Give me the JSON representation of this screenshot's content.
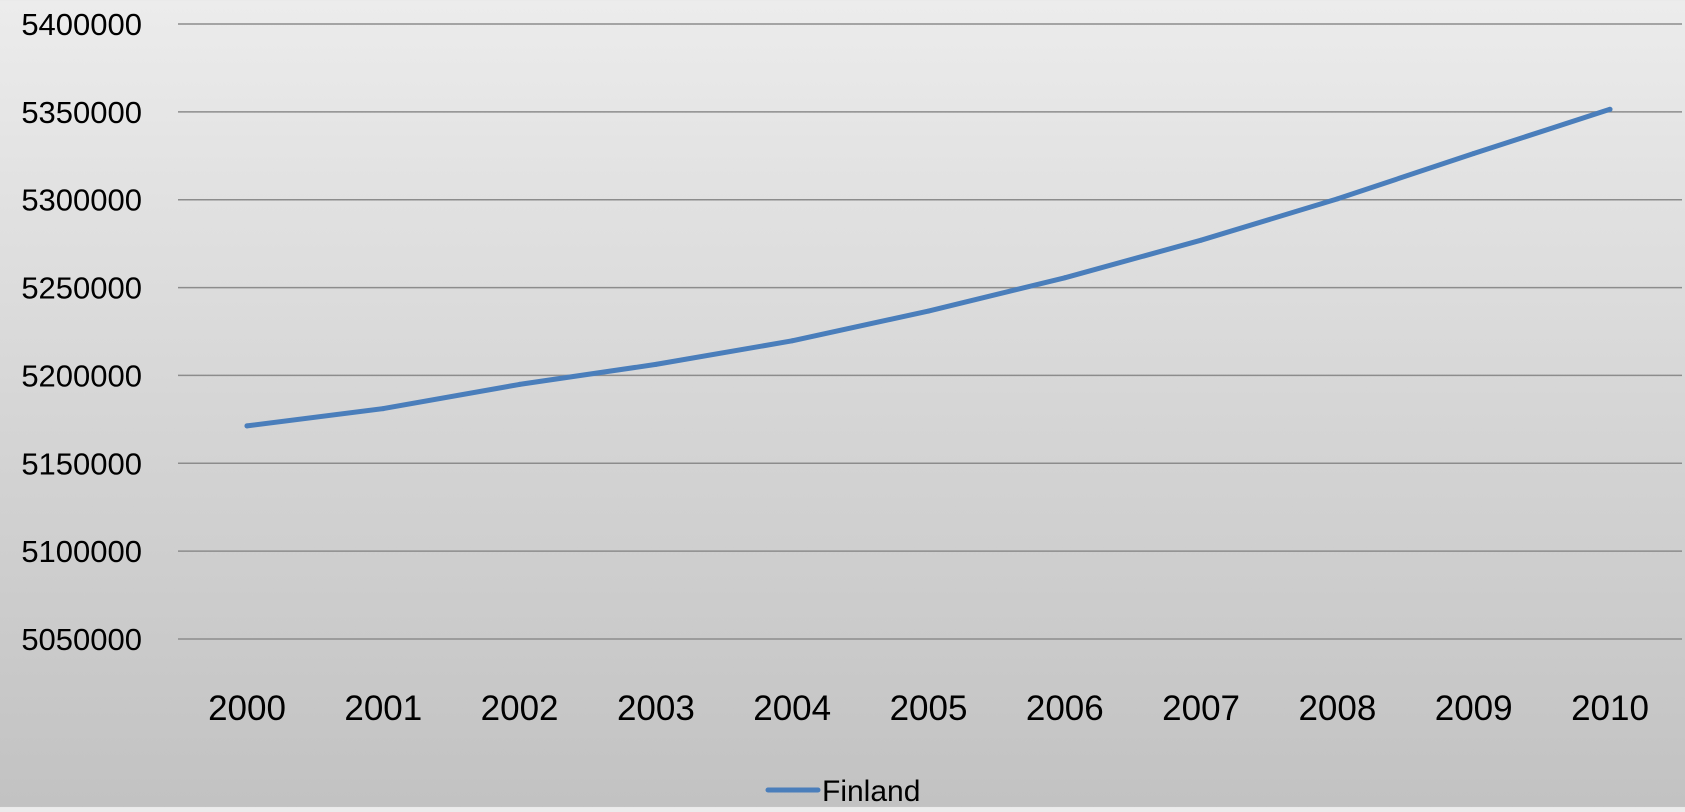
{
  "chart_data": {
    "type": "line",
    "title": "",
    "xlabel": "",
    "ylabel": "",
    "categories": [
      "2000",
      "2001",
      "2002",
      "2003",
      "2004",
      "2005",
      "2006",
      "2007",
      "2008",
      "2009",
      "2010"
    ],
    "y_ticks": [
      "5050000",
      "5100000",
      "5150000",
      "5200000",
      "5250000",
      "5300000",
      "5350000",
      "5400000"
    ],
    "ylim": [
      5050000,
      5400000
    ],
    "grid": true,
    "legend_position": "bottom",
    "series": [
      {
        "name": "Finland",
        "color": "#4a7ebb",
        "values": [
          5171302,
          5181115,
          5194901,
          5206295,
          5219732,
          5236611,
          5255580,
          5276955,
          5300484,
          5326314,
          5351427
        ]
      }
    ]
  }
}
